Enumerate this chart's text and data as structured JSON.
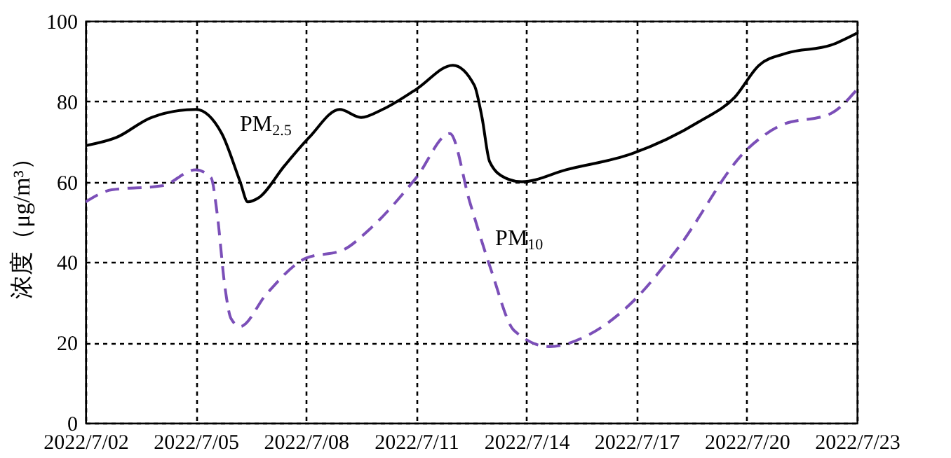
{
  "chart_data": {
    "type": "line",
    "ylabel": "浓度（μg/m³）",
    "xlim": [
      "2022-07-02",
      "2022-07-23"
    ],
    "ylim": [
      0,
      100
    ],
    "yticks": [
      0,
      20,
      40,
      60,
      80,
      100
    ],
    "xticks": [
      {
        "value": "2022-07-02",
        "label": "2022/7/02"
      },
      {
        "value": "2022-07-05",
        "label": "2022/7/05"
      },
      {
        "value": "2022-07-08",
        "label": "2022/7/08"
      },
      {
        "value": "2022-07-11",
        "label": "2022/7/11"
      },
      {
        "value": "2022-07-14",
        "label": "2022/7/14"
      },
      {
        "value": "2022-07-17",
        "label": "2022/7/17"
      },
      {
        "value": "2022-07-20",
        "label": "2022/7/20"
      },
      {
        "value": "2022-07-23",
        "label": "2022/7/23"
      }
    ],
    "grid": true,
    "series": [
      {
        "name": "PM$_{2.5}$",
        "color": "#000000",
        "line_style": "solid",
        "x": [
          "2022-07-02T00:00",
          "2022-07-02T20:00",
          "2022-07-03T19:00",
          "2022-07-05T00:00",
          "2022-07-05T17:00",
          "2022-07-06T05:00",
          "2022-07-06T10:00",
          "2022-07-06T17:00",
          "2022-07-07T10:00",
          "2022-07-08T02:00",
          "2022-07-08T22:00",
          "2022-07-09T12:00",
          "2022-07-10T02:00",
          "2022-07-11T00:00",
          "2022-07-12T00:00",
          "2022-07-12T14:00",
          "2022-07-12T19:00",
          "2022-07-13T00:00",
          "2022-07-13T10:00",
          "2022-07-13T21:00",
          "2022-07-15T02:00",
          "2022-07-16T21:00",
          "2022-07-18T17:00",
          "2022-07-19T16:00",
          "2022-07-20T08:00",
          "2022-07-21T02:00",
          "2022-07-22T07:00",
          "2022-07-23T00:00"
        ],
        "values": [
          69,
          71,
          76,
          78,
          72,
          60,
          55,
          56,
          64,
          71,
          78,
          76,
          78,
          83,
          89,
          84,
          76,
          65,
          61,
          60,
          63,
          67,
          75,
          81,
          89,
          92,
          94,
          97
        ]
      },
      {
        "name": "PM$_{10}$",
        "color": "#7b4fb8",
        "line_style": "dashed",
        "x": [
          "2022-07-02T00:00",
          "2022-07-02T17:00",
          "2022-07-04T02:00",
          "2022-07-05T00:00",
          "2022-07-05T10:00",
          "2022-07-05T14:00",
          "2022-07-05T19:00",
          "2022-07-05T23:00",
          "2022-07-06T05:00",
          "2022-07-06T22:00",
          "2022-07-08T00:00",
          "2022-07-09T00:00",
          "2022-07-09T17:00",
          "2022-07-11T00:00",
          "2022-07-11T22:00",
          "2022-07-12T11:00",
          "2022-07-13T01:00",
          "2022-07-13T16:00",
          "2022-07-14T15:00",
          "2022-07-15T17:00",
          "2022-07-16T21:00",
          "2022-07-18T02:00",
          "2022-07-20T00:00",
          "2022-07-20T22:00",
          "2022-07-22T07:00",
          "2022-07-23T00:00"
        ],
        "values": [
          55,
          58,
          59,
          63,
          61,
          52,
          34,
          26,
          24,
          32,
          41,
          43,
          48,
          61,
          72,
          55,
          38,
          23,
          19,
          22,
          30,
          43,
          68,
          74,
          77,
          83
        ]
      }
    ]
  }
}
